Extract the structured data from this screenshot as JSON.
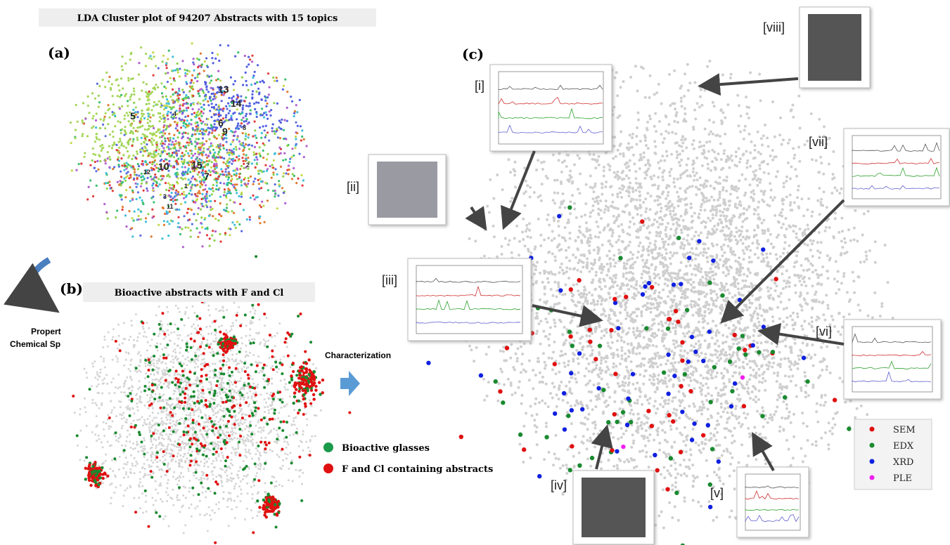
{
  "panel_a": {
    "title": "LDA Cluster plot of 94207 Abstracts with 15 topics",
    "label": "(a)",
    "topic_labels": [
      "13",
      "14",
      "5",
      "6",
      "9",
      "15",
      "7",
      "10",
      "12",
      "3",
      "11",
      "1",
      "4",
      "8",
      "2"
    ]
  },
  "panel_b": {
    "label": "(b)",
    "title": "Bioactive abstracts with F and Cl",
    "legend": [
      "Bioactive glasses",
      "F and Cl containing abstracts"
    ]
  },
  "side_text": [
    "Propert",
    "Chemical Sp"
  ],
  "arrow_label": "Characterization",
  "panel_c": {
    "label": "(c)",
    "insets": [
      "[i]",
      "[ii]",
      "[iii]",
      "[iv]",
      "[v]",
      "[vi]",
      "[vii]",
      "[viii]"
    ],
    "legend": [
      "SEM",
      "EDX",
      "XRD",
      "PLE"
    ]
  }
}
